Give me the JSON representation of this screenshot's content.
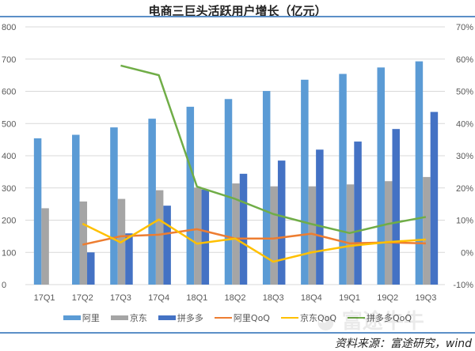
{
  "chart_data": {
    "type": "bar",
    "title": "电商三巨头活跃用户增长（亿元）",
    "categories": [
      "17Q1",
      "17Q2",
      "17Q3",
      "17Q4",
      "18Q1",
      "18Q2",
      "18Q3",
      "18Q4",
      "19Q1",
      "19Q2",
      "19Q3"
    ],
    "ylim": [
      0,
      800
    ],
    "yticks": [
      "0",
      "100",
      "200",
      "300",
      "400",
      "500",
      "600",
      "700",
      "800"
    ],
    "y2lim": [
      -10,
      70
    ],
    "y2ticks": [
      "-10%",
      "0%",
      "10%",
      "20%",
      "30%",
      "40%",
      "50%",
      "60%",
      "70%"
    ],
    "grid": true,
    "legend_position": "bottom",
    "series": [
      {
        "name": "阿里",
        "type": "bar",
        "axis": "left",
        "color": "#5b9bd5",
        "values": [
          454,
          465,
          488,
          515,
          552,
          576,
          601,
          636,
          654,
          674,
          693
        ]
      },
      {
        "name": "京东",
        "type": "bar",
        "axis": "left",
        "color": "#a5a5a5",
        "values": [
          237,
          258,
          266,
          293,
          301,
          314,
          305,
          305,
          311,
          321,
          334
        ]
      },
      {
        "name": "拼多多",
        "type": "bar",
        "axis": "left",
        "color": "#4472c4",
        "values": [
          null,
          100,
          159,
          245,
          295,
          344,
          385,
          419,
          444,
          483,
          536
        ]
      },
      {
        "name": "阿里QoQ",
        "type": "line",
        "axis": "right",
        "color": "#ed7d31",
        "values": [
          null,
          2.4,
          5.0,
          5.5,
          7.2,
          4.3,
          4.3,
          5.8,
          2.8,
          3.1,
          2.8
        ]
      },
      {
        "name": "京东QoQ",
        "type": "line",
        "axis": "right",
        "color": "#ffc000",
        "values": [
          null,
          8.9,
          3.1,
          10.2,
          2.7,
          4.3,
          -2.9,
          0.0,
          2.0,
          3.2,
          4.0
        ]
      },
      {
        "name": "拼多多QoQ",
        "type": "line",
        "axis": "right",
        "color": "#70ad47",
        "values": [
          null,
          null,
          58.0,
          55.0,
          20.4,
          16.6,
          11.9,
          8.8,
          6.0,
          8.8,
          11.0
        ]
      }
    ]
  },
  "source": "资料来源：富途研究，wind",
  "watermark": "富途牛牛"
}
